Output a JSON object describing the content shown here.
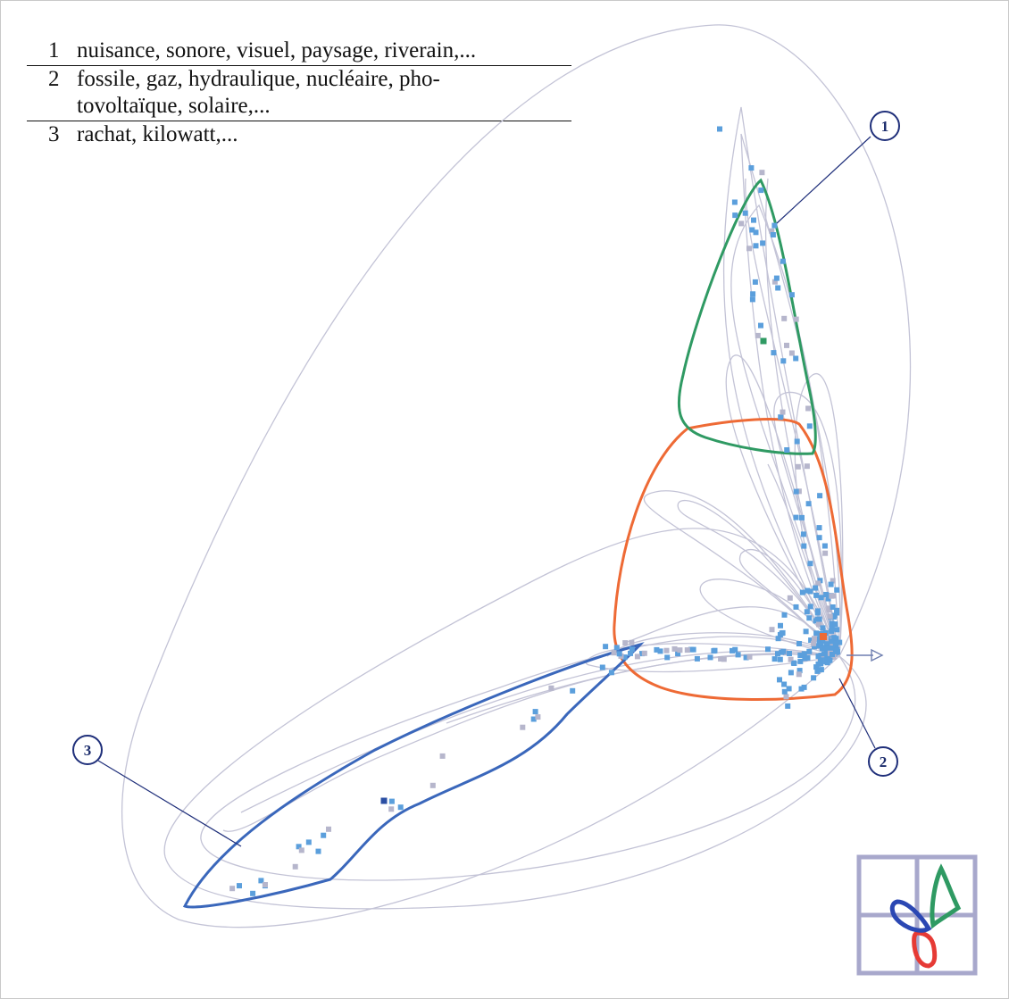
{
  "legend": {
    "rows": [
      {
        "num": "1",
        "lines": [
          "nuisance, sonore, visuel, paysage, riverain,..."
        ]
      },
      {
        "num": "2",
        "lines": [
          "fossile, gaz, hydraulique, nucléaire, pho-",
          "tovoltaïque, solaire,..."
        ]
      },
      {
        "num": "3",
        "lines": [
          "rachat, kilowatt,..."
        ]
      }
    ]
  },
  "callouts": {
    "c1": "1",
    "c2": "2",
    "c3": "3"
  },
  "colors": {
    "cluster1": "#2f9a63",
    "cluster2": "#ee6a35",
    "cluster3": "#3a67bb",
    "points": "#5b9fdc",
    "points_grey": "#b6b6cc",
    "curves": "#c3c3d6",
    "callout": "#1f2f7a",
    "thumbnail_grid": "#a8a8cc"
  },
  "icons": {
    "axis_arrow": "arrow-right-icon"
  }
}
